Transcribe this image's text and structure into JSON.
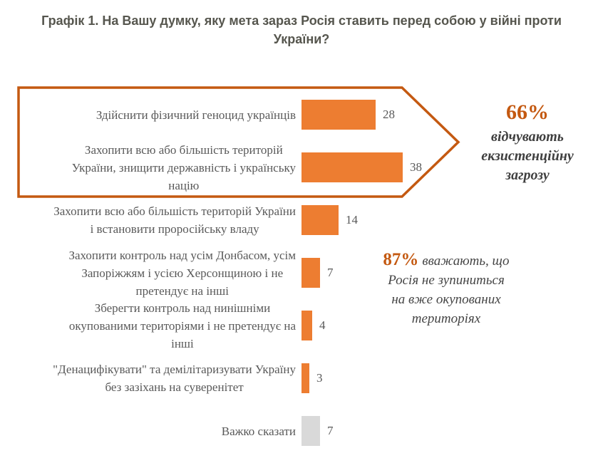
{
  "title": "Графік 1. На Вашу думку, яку мета зараз Росія ставить перед собою у війні проти України?",
  "colors": {
    "bar_orange": "#ED7D31",
    "bar_gray": "#D9D9D9",
    "accent_dark_orange": "#C45911",
    "title_gray": "#56564E",
    "label_gray": "#595959"
  },
  "chart_data": {
    "type": "bar",
    "orientation": "horizontal",
    "title": "Графік 1. На Вашу думку, яку мета зараз Росія ставить перед собою у війні проти України?",
    "xlabel": "",
    "ylabel": "",
    "xlim": [
      0,
      40
    ],
    "grid": false,
    "unit": "%",
    "categories": [
      "Здійснити фізичний геноцид українців",
      "Захопити всю або більшість територій\nУкраїни, знищити державність і українську\nнацію",
      "Захопити всю або більшість територій України\nі встановити проросійську владу",
      "Захопити контроль над усім Донбасом, усім\nЗапоріжжям і усією Херсонщиною і не\nпретендує на інші",
      "Зберегти контроль над нинішніми\nокупованими територіями і не претендує на\nінші",
      "\"Денацифікувати\" та демілітаризувати Україну\nбез зазіхань на суверенітет",
      "Важко сказати"
    ],
    "values": [
      28,
      38,
      14,
      7,
      4,
      3,
      7
    ],
    "bar_colors": [
      "#ED7D31",
      "#ED7D31",
      "#ED7D31",
      "#ED7D31",
      "#ED7D31",
      "#ED7D31",
      "#D9D9D9"
    ],
    "callout_group": {
      "rows_included": [
        0,
        1
      ],
      "shape": "right-pointing-arrow-outline",
      "stroke": "#C45911"
    },
    "annotations": [
      {
        "pct": "66%",
        "text": "відчувають\nекзистенційну\nзагрозу"
      },
      {
        "pct": "87%",
        "text": "вважають, що\nРосія не зупиниться\nна вже окупованих\nтериторіях"
      }
    ]
  }
}
